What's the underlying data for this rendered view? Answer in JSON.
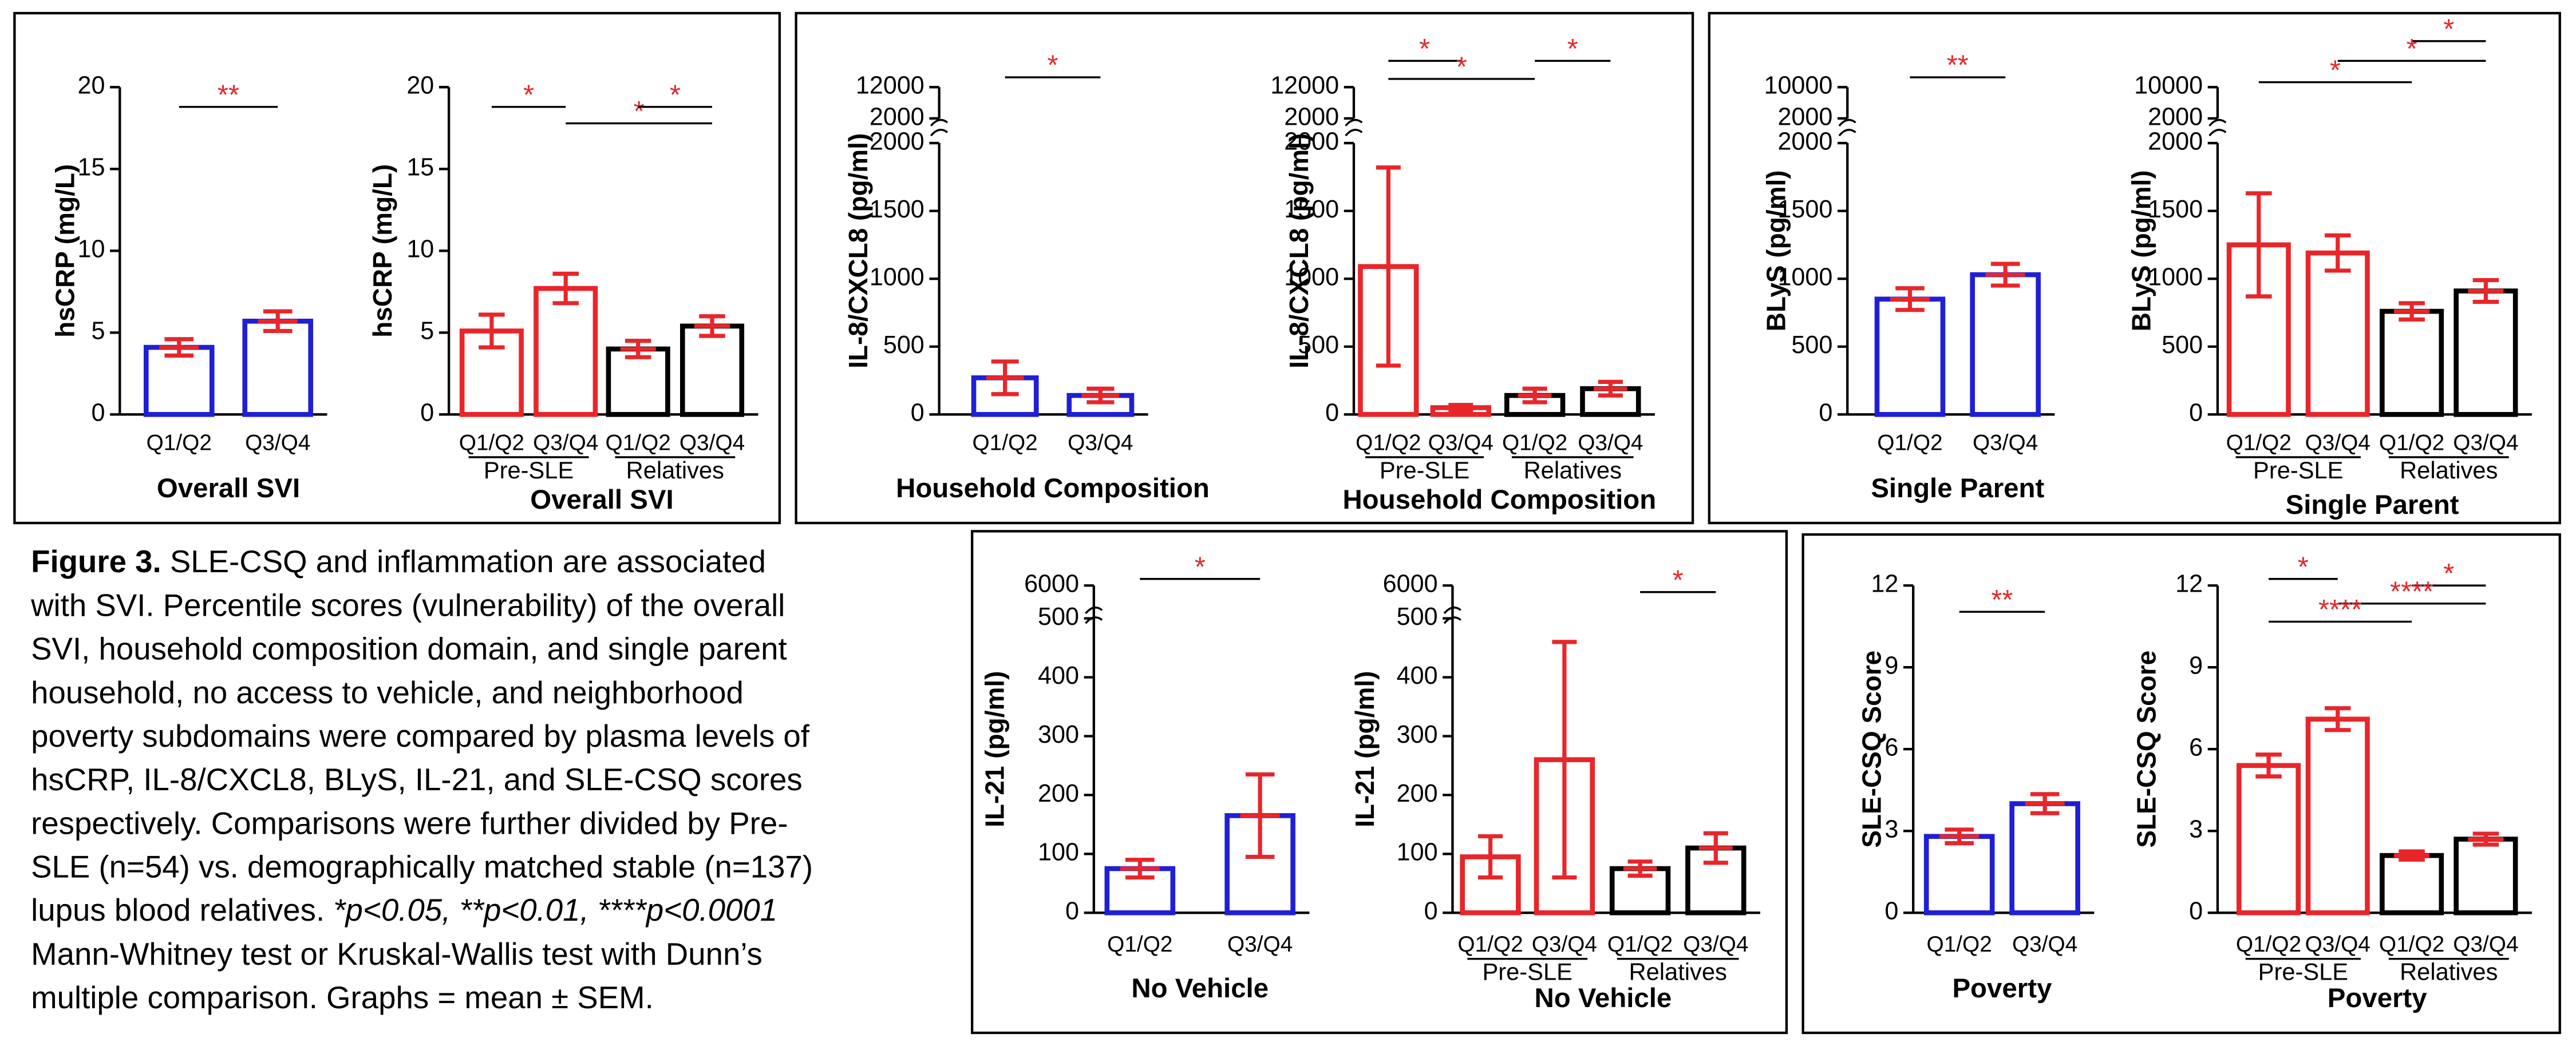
{
  "caption": {
    "lines": [
      [
        "Figure 3.",
        " SLE-CSQ and inflammation are associated"
      ],
      [
        "with SVI. Percentile scores (vulnerability)  of the overall"
      ],
      [
        "SVI, household composition domain, and single parent"
      ],
      [
        "household, no access to vehicle, and neighborhood"
      ],
      [
        "poverty subdomains were compared by plasma levels of"
      ],
      [
        "hsCRP, IL-8/CXCL8, BLyS, IL-21, and SLE-CSQ scores"
      ],
      [
        "respectively. Comparisons were further divided by Pre-"
      ],
      [
        "SLE (n=54) vs. demographically matched stable (n=137)"
      ],
      [
        "lupus blood relatives. ",
        "*p<0.05, **p<0.01, ****p<0.0001"
      ],
      [
        "Mann-Whitney test or Kruskal-Wallis test with Dunn’s"
      ],
      [
        "multiple comparison. Graphs = mean ± SEM."
      ]
    ]
  },
  "chart_data": [
    {
      "type": "bar",
      "ylabel": "hsCRP (mg/L)",
      "xlabel": "Overall  SVI",
      "categories": [
        "Q1/Q2",
        "Q3/Q4"
      ],
      "values": [
        4.1,
        5.7
      ],
      "errors": [
        0.5,
        0.6
      ],
      "colors": [
        "#1f1fd6",
        "#1f1fd6"
      ],
      "error_color": "#e8262a",
      "ylim": [
        0,
        20
      ],
      "yticks": [
        0,
        5,
        10,
        15,
        20
      ],
      "annotations": [
        {
          "text": "**",
          "from": 0,
          "to": 1
        }
      ]
    },
    {
      "type": "bar",
      "ylabel": "hsCRP (mg/L)",
      "xlabel": "Overall  SVI",
      "categories": [
        "Q1/Q2",
        "Q3/Q4",
        "Q1/Q2",
        "Q3/Q4"
      ],
      "groups": [
        "Pre-SLE",
        "Relatives"
      ],
      "values": [
        5.1,
        7.7,
        4.0,
        5.4
      ],
      "errors": [
        1.0,
        0.9,
        0.5,
        0.6
      ],
      "colors": [
        "#e8262a",
        "#e8262a",
        "#000000",
        "#000000"
      ],
      "error_color": "#e8262a",
      "ylim": [
        0,
        20
      ],
      "yticks": [
        0,
        5,
        10,
        15,
        20
      ],
      "annotations": [
        {
          "text": "*",
          "from": 0,
          "to": 1
        },
        {
          "text": "*",
          "from": 1,
          "to": 3
        },
        {
          "text": "*",
          "from": 2,
          "to": 3
        }
      ]
    },
    {
      "type": "bar",
      "ylabel": "IL-8/CXCL8 (pg/ml)",
      "xlabel": "Household  Composition",
      "categories": [
        "Q1/Q2",
        "Q3/Q4"
      ],
      "values": [
        270,
        140
      ],
      "errors": [
        120,
        50
      ],
      "colors": [
        "#1f1fd6",
        "#1f1fd6"
      ],
      "error_color": "#e8262a",
      "ylim": [
        0,
        2000
      ],
      "yticks": [
        0,
        500,
        1000,
        1500,
        2000
      ],
      "ylim_upper": [
        2000,
        12000
      ],
      "yticks_upper": [
        2000,
        12000
      ],
      "annotations": [
        {
          "text": "*",
          "from": 0,
          "to": 1
        }
      ]
    },
    {
      "type": "bar",
      "ylabel": "IL-8/CXCL8 (pg/ml)",
      "xlabel": "Household Composition",
      "categories": [
        "Q1/Q2",
        "Q3/Q4",
        "Q1/Q2",
        "Q3/Q4"
      ],
      "groups": [
        "Pre-SLE",
        "Relatives"
      ],
      "values": [
        1090,
        50,
        140,
        190
      ],
      "errors": [
        730,
        20,
        50,
        50
      ],
      "colors": [
        "#e8262a",
        "#e8262a",
        "#000000",
        "#000000"
      ],
      "error_color": "#e8262a",
      "ylim": [
        0,
        2000
      ],
      "yticks": [
        0,
        500,
        1000,
        1500,
        2000
      ],
      "ylim_upper": [
        2000,
        12000
      ],
      "yticks_upper": [
        2000,
        12000
      ],
      "annotations": [
        {
          "text": "*",
          "from": 0,
          "to": 1
        },
        {
          "text": "*",
          "from": 0,
          "to": 2
        },
        {
          "text": "*",
          "from": 2,
          "to": 3
        }
      ]
    },
    {
      "type": "bar",
      "ylabel": "BLyS (pg/ml)",
      "xlabel": "Single Parent",
      "categories": [
        "Q1/Q2",
        "Q3/Q4"
      ],
      "values": [
        850,
        1030
      ],
      "errors": [
        80,
        80
      ],
      "colors": [
        "#1f1fd6",
        "#1f1fd6"
      ],
      "error_color": "#e8262a",
      "ylim": [
        0,
        2000
      ],
      "yticks": [
        0,
        500,
        1000,
        1500,
        2000
      ],
      "ylim_upper": [
        2000,
        10000
      ],
      "yticks_upper": [
        2000,
        10000
      ],
      "annotations": [
        {
          "text": "**",
          "from": 0,
          "to": 1
        }
      ]
    },
    {
      "type": "bar",
      "ylabel": "BLyS (pg/ml)",
      "xlabel": "Single Parent",
      "categories": [
        "Q1/Q2",
        "Q3/Q4",
        "Q1/Q2",
        "Q3/Q4"
      ],
      "groups": [
        "Pre-SLE",
        "Relatives"
      ],
      "values": [
        1250,
        1190,
        760,
        910
      ],
      "errors": [
        380,
        130,
        60,
        80
      ],
      "colors": [
        "#e8262a",
        "#e8262a",
        "#000000",
        "#000000"
      ],
      "error_color": "#e8262a",
      "ylim": [
        0,
        2000
      ],
      "yticks": [
        0,
        500,
        1000,
        1500,
        2000
      ],
      "ylim_upper": [
        2000,
        10000
      ],
      "yticks_upper": [
        2000,
        10000
      ],
      "annotations": [
        {
          "text": "*",
          "from": 2,
          "to": 3
        },
        {
          "text": "*",
          "from": 1,
          "to": 3
        },
        {
          "text": "*",
          "from": 0,
          "to": 2
        }
      ]
    },
    {
      "type": "bar",
      "ylabel": "IL-21 (pg/ml)",
      "xlabel": "No Vehicle",
      "categories": [
        "Q1/Q2",
        "Q3/Q4"
      ],
      "values": [
        75,
        165
      ],
      "errors": [
        15,
        70
      ],
      "colors": [
        "#1f1fd6",
        "#1f1fd6"
      ],
      "error_color": "#e8262a",
      "ylim": [
        0,
        500
      ],
      "yticks": [
        0,
        100,
        200,
        300,
        400
      ],
      "ylim_upper": [
        500,
        6000
      ],
      "yticks_upper": [
        500,
        6000
      ],
      "annotations": [
        {
          "text": "*",
          "from": 0,
          "to": 1
        }
      ]
    },
    {
      "type": "bar",
      "ylabel": "IL-21 (pg/ml)",
      "xlabel": "No Vehicle",
      "categories": [
        "Q1/Q2",
        "Q3/Q4",
        "Q1/Q2",
        "Q3/Q4"
      ],
      "groups": [
        "Pre-SLE",
        "Relatives"
      ],
      "values": [
        95,
        260,
        75,
        110
      ],
      "errors": [
        35,
        200,
        12,
        25
      ],
      "colors": [
        "#e8262a",
        "#e8262a",
        "#000000",
        "#000000"
      ],
      "error_color": "#e8262a",
      "ylim": [
        0,
        500
      ],
      "yticks": [
        0,
        100,
        200,
        300,
        400
      ],
      "ylim_upper": [
        500,
        6000
      ],
      "yticks_upper": [
        500,
        6000
      ],
      "annotations": [
        {
          "text": "*",
          "from": 2,
          "to": 3
        }
      ]
    },
    {
      "type": "bar",
      "ylabel": "SLE-CSQ Score",
      "xlabel": "Poverty",
      "categories": [
        "Q1/Q2",
        "Q3/Q4"
      ],
      "values": [
        2.8,
        4.0
      ],
      "errors": [
        0.25,
        0.35
      ],
      "colors": [
        "#1f1fd6",
        "#1f1fd6"
      ],
      "error_color": "#e8262a",
      "ylim": [
        0,
        12
      ],
      "yticks": [
        0,
        3,
        6,
        9,
        12
      ],
      "annotations": [
        {
          "text": "**",
          "from": 0,
          "to": 1
        }
      ]
    },
    {
      "type": "bar",
      "ylabel": "SLE-CSQ Score",
      "xlabel": "Poverty",
      "categories": [
        "Q1/Q2",
        "Q3/Q4",
        "Q1/Q2",
        "Q3/Q4"
      ],
      "groups": [
        "Pre-SLE",
        "Relatives"
      ],
      "values": [
        5.4,
        7.1,
        2.1,
        2.7
      ],
      "errors": [
        0.4,
        0.4,
        0.15,
        0.2
      ],
      "colors": [
        "#e8262a",
        "#e8262a",
        "#000000",
        "#000000"
      ],
      "error_color": "#e8262a",
      "ylim": [
        0,
        12
      ],
      "yticks": [
        0,
        3,
        6,
        9,
        12
      ],
      "annotations": [
        {
          "text": "*",
          "from": 0,
          "to": 1
        },
        {
          "text": "*",
          "from": 2,
          "to": 3
        },
        {
          "text": "****",
          "from": 1,
          "to": 3
        },
        {
          "text": "****",
          "from": 0,
          "to": 2
        }
      ]
    }
  ]
}
